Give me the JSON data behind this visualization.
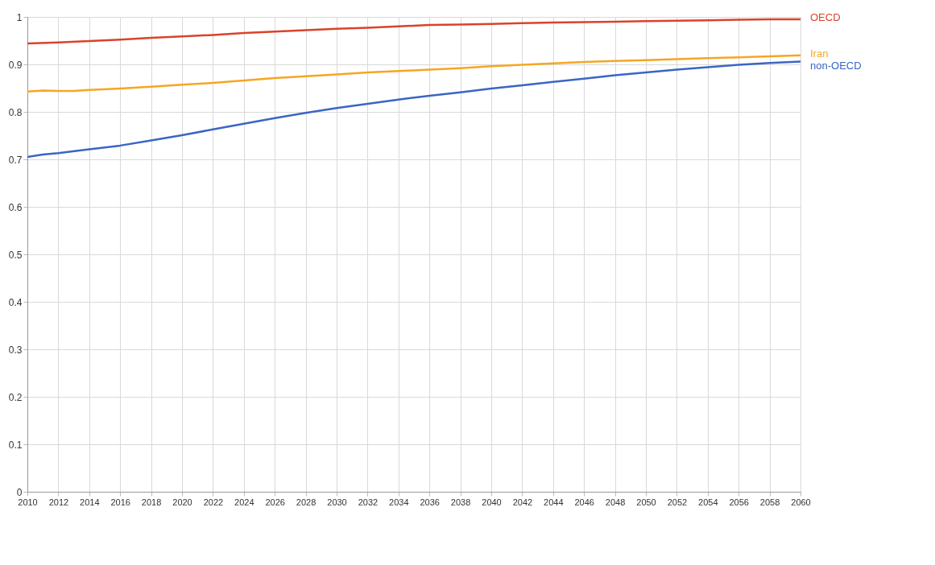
{
  "chart_data": {
    "type": "line",
    "xlim": [
      2010,
      2060
    ],
    "xticks": [
      2010,
      2012,
      2014,
      2016,
      2018,
      2020,
      2022,
      2024,
      2026,
      2028,
      2030,
      2032,
      2034,
      2036,
      2038,
      2040,
      2042,
      2044,
      2046,
      2048,
      2050,
      2052,
      2054,
      2056,
      2058,
      2060
    ],
    "ylim": [
      0,
      1
    ],
    "yticks": [
      0,
      0.1,
      0.2,
      0.3,
      0.4,
      0.5,
      0.6,
      0.7,
      0.8,
      0.9,
      1
    ],
    "grid": true,
    "legend": false,
    "marker": "none",
    "line_style": "solid",
    "series": [
      {
        "name": "OECD",
        "color": "#d9432b",
        "x": [
          2010,
          2012,
          2014,
          2016,
          2018,
          2020,
          2022,
          2024,
          2026,
          2028,
          2030,
          2032,
          2034,
          2036,
          2038,
          2040,
          2042,
          2044,
          2046,
          2048,
          2050,
          2052,
          2054,
          2056,
          2058,
          2060
        ],
        "values": [
          0.944,
          0.946,
          0.949,
          0.952,
          0.956,
          0.959,
          0.962,
          0.966,
          0.969,
          0.972,
          0.975,
          0.977,
          0.98,
          0.983,
          0.984,
          0.985,
          0.987,
          0.988,
          0.989,
          0.99,
          0.991,
          0.992,
          0.993,
          0.994,
          0.995,
          0.995
        ]
      },
      {
        "name": "Iran",
        "color": "#f5a623",
        "x": [
          2010,
          2011,
          2012,
          2013,
          2014,
          2016,
          2018,
          2020,
          2022,
          2024,
          2026,
          2028,
          2030,
          2032,
          2034,
          2036,
          2038,
          2040,
          2042,
          2044,
          2046,
          2048,
          2050,
          2052,
          2054,
          2056,
          2058,
          2060
        ],
        "values": [
          0.843,
          0.845,
          0.844,
          0.844,
          0.846,
          0.849,
          0.853,
          0.857,
          0.861,
          0.866,
          0.871,
          0.875,
          0.879,
          0.883,
          0.886,
          0.889,
          0.892,
          0.896,
          0.899,
          0.902,
          0.905,
          0.907,
          0.909,
          0.911,
          0.913,
          0.915,
          0.917,
          0.919
        ]
      },
      {
        "name": "non-OECD",
        "color": "#3a66c4",
        "x": [
          2010,
          2011,
          2012,
          2014,
          2016,
          2018,
          2020,
          2022,
          2024,
          2026,
          2028,
          2030,
          2032,
          2034,
          2036,
          2038,
          2040,
          2042,
          2044,
          2046,
          2048,
          2050,
          2052,
          2054,
          2056,
          2058,
          2060
        ],
        "values": [
          0.705,
          0.71,
          0.713,
          0.721,
          0.729,
          0.74,
          0.751,
          0.763,
          0.775,
          0.787,
          0.798,
          0.808,
          0.817,
          0.826,
          0.834,
          0.841,
          0.849,
          0.856,
          0.863,
          0.87,
          0.877,
          0.883,
          0.889,
          0.894,
          0.899,
          0.903,
          0.906
        ]
      }
    ]
  }
}
